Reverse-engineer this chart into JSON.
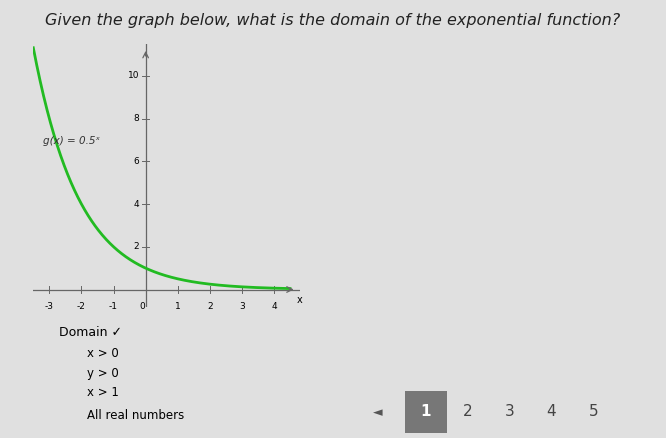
{
  "title": "Given the graph below, what is the domain of the exponential function?",
  "title_fontsize": 11.5,
  "func_label": "g(x) = 0.5ˣ",
  "base": 0.5,
  "xlim": [
    -3.5,
    4.8
  ],
  "ylim": [
    -0.8,
    11.5
  ],
  "xticks": [
    -3,
    -2,
    -1,
    0,
    1,
    2,
    3,
    4
  ],
  "yticks": [
    2,
    4,
    6,
    8,
    10
  ],
  "curve_color": "#22bb22",
  "axis_color": "#666666",
  "background_color": "#e8e8e8",
  "domain_label": "Domain ✓",
  "choices": [
    "x > 0",
    "y > 0",
    "x > 1",
    "All real numbers"
  ],
  "nav_numbers": [
    "1",
    "2",
    "3",
    "4",
    "5"
  ],
  "page_bg": "#e0e0e0"
}
